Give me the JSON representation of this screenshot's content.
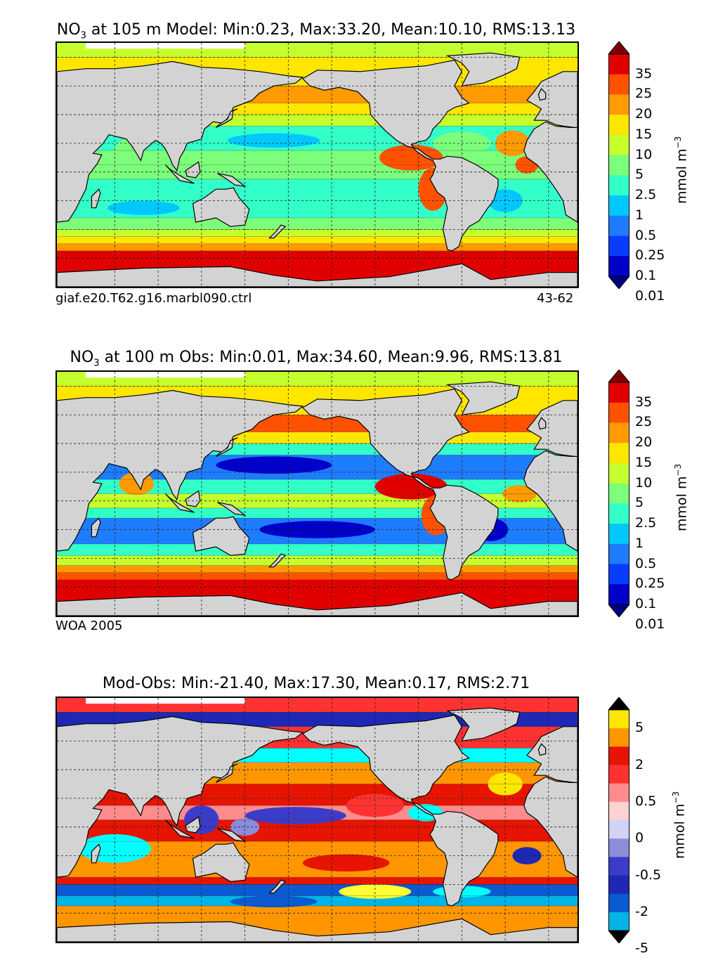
{
  "chart_data": [
    {
      "type": "heatmap",
      "title_prefix": "NO",
      "title_sub": "3",
      "title_rest": " at 105 m Model: Min:0.23, Max:33.20, Mean:10.10, RMS:13.13",
      "stats": {
        "min": 0.23,
        "max": 33.2,
        "mean": 10.1,
        "rms": 13.13
      },
      "caption_left": "giaf.e20.T62.g16.marbl090.ctrl",
      "caption_right": "43-62",
      "colorbar": {
        "ticks": [
          "35",
          "25",
          "20",
          "15",
          "10",
          "5",
          "2.5",
          "1",
          "0.5",
          "0.25",
          "0.1",
          "0.01"
        ],
        "unit": "mmol m",
        "unit_exp": "−3",
        "colors": [
          "#00007f",
          "#0000c8",
          "#0a3cff",
          "#1e7cff",
          "#00c8ff",
          "#33ffc9",
          "#7cff7a",
          "#c6ff2e",
          "#ffe600",
          "#ff9a00",
          "#ff5200",
          "#e10000",
          "#7f0000"
        ]
      }
    },
    {
      "type": "heatmap",
      "title_prefix": "NO",
      "title_sub": "3",
      "title_rest": " at 100 m Obs: Min:0.01, Max:34.60, Mean:9.96, RMS:13.81",
      "stats": {
        "min": 0.01,
        "max": 34.6,
        "mean": 9.96,
        "rms": 13.81
      },
      "caption_left": "WOA 2005",
      "caption_right": "",
      "colorbar": {
        "ticks": [
          "35",
          "25",
          "20",
          "15",
          "10",
          "5",
          "2.5",
          "1",
          "0.5",
          "0.25",
          "0.1",
          "0.01"
        ],
        "unit": "mmol m",
        "unit_exp": "−3",
        "colors": [
          "#00007f",
          "#0000c8",
          "#0a3cff",
          "#1e7cff",
          "#00c8ff",
          "#33ffc9",
          "#7cff7a",
          "#c6ff2e",
          "#ffe600",
          "#ff9a00",
          "#ff5200",
          "#e10000",
          "#7f0000"
        ]
      }
    },
    {
      "type": "heatmap",
      "title_prefix": "",
      "title_sub": "",
      "title_rest": "Mod-Obs: Min:-21.40, Max:17.30, Mean:0.17, RMS:2.71",
      "stats": {
        "min": -21.4,
        "max": 17.3,
        "mean": 0.17,
        "rms": 2.71
      },
      "caption_left": "",
      "caption_right": "",
      "colorbar": {
        "ticks": [
          "5",
          "2",
          "0.5",
          "0",
          "-0.5",
          "-2",
          "-5"
        ],
        "unit": "mmol m",
        "unit_exp": "−3",
        "colors": [
          "#00ffff",
          "#00b4e6",
          "#0a5ad2",
          "#1e28b4",
          "#3c3cc8",
          "#8c8cdc",
          "#d2d2f5",
          "#ffd2d2",
          "#ff8c8c",
          "#ff3232",
          "#e61400",
          "#ff9600",
          "#ffe600",
          "#ffff32"
        ]
      }
    }
  ]
}
